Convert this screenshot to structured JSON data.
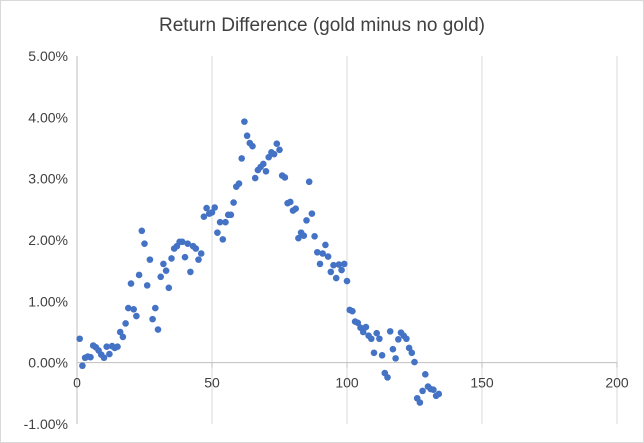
{
  "chart_data": {
    "type": "scatter",
    "title": "Return Difference (gold minus no gold)",
    "xlabel": "",
    "ylabel": "",
    "xlim": [
      0,
      200
    ],
    "ylim": [
      -0.01,
      0.05
    ],
    "x_ticks": [
      0,
      50,
      100,
      150,
      200
    ],
    "x_tick_labels": [
      "0",
      "50",
      "100",
      "150",
      "200"
    ],
    "y_ticks": [
      -0.01,
      0,
      0.01,
      0.02,
      0.03,
      0.04,
      0.05
    ],
    "y_tick_labels": [
      "-1.00%",
      "0.00%",
      "1.00%",
      "2.00%",
      "3.00%",
      "4.00%",
      "5.00%"
    ],
    "grid": "vertical major gridlines",
    "legend": "none",
    "marker_color": "#4472c4",
    "series": [
      {
        "points": [
          [
            1,
            0.0039
          ],
          [
            2,
            -0.0005
          ],
          [
            3,
            0.0008
          ],
          [
            4,
            0.001
          ],
          [
            5,
            0.0009
          ],
          [
            6,
            0.0028
          ],
          [
            7,
            0.0025
          ],
          [
            8,
            0.002
          ],
          [
            9,
            0.0013
          ],
          [
            10,
            0.0008
          ],
          [
            11,
            0.0026
          ],
          [
            12,
            0.0014
          ],
          [
            13,
            0.0027
          ],
          [
            14,
            0.0024
          ],
          [
            15,
            0.0026
          ],
          [
            16,
            0.005
          ],
          [
            17,
            0.0042
          ],
          [
            18,
            0.0064
          ],
          [
            19,
            0.0089
          ],
          [
            20,
            0.0129
          ],
          [
            21,
            0.0087
          ],
          [
            22,
            0.0076
          ],
          [
            23,
            0.0143
          ],
          [
            24,
            0.0215
          ],
          [
            25,
            0.0194
          ],
          [
            26,
            0.0126
          ],
          [
            27,
            0.0168
          ],
          [
            28,
            0.0071
          ],
          [
            29,
            0.0089
          ],
          [
            30,
            0.0054
          ],
          [
            31,
            0.014
          ],
          [
            32,
            0.0161
          ],
          [
            33,
            0.015
          ],
          [
            34,
            0.0122
          ],
          [
            35,
            0.017
          ],
          [
            36,
            0.0186
          ],
          [
            37,
            0.019
          ],
          [
            38,
            0.0197
          ],
          [
            39,
            0.0197
          ],
          [
            40,
            0.0172
          ],
          [
            41,
            0.0194
          ],
          [
            42,
            0.0148
          ],
          [
            43,
            0.019
          ],
          [
            44,
            0.0186
          ],
          [
            45,
            0.0168
          ],
          [
            46,
            0.0178
          ],
          [
            47,
            0.0238
          ],
          [
            48,
            0.0252
          ],
          [
            49,
            0.0243
          ],
          [
            50,
            0.0245
          ],
          [
            51,
            0.0253
          ],
          [
            52,
            0.0212
          ],
          [
            53,
            0.0229
          ],
          [
            54,
            0.0201
          ],
          [
            55,
            0.0229
          ],
          [
            56,
            0.0241
          ],
          [
            57,
            0.0241
          ],
          [
            58,
            0.0261
          ],
          [
            59,
            0.0287
          ],
          [
            60,
            0.0292
          ],
          [
            61,
            0.0333
          ],
          [
            62,
            0.0393
          ],
          [
            63,
            0.037
          ],
          [
            64,
            0.0358
          ],
          [
            65,
            0.0353
          ],
          [
            66,
            0.0301
          ],
          [
            67,
            0.0314
          ],
          [
            68,
            0.0319
          ],
          [
            69,
            0.0324
          ],
          [
            70,
            0.0312
          ],
          [
            71,
            0.0335
          ],
          [
            72,
            0.0343
          ],
          [
            73,
            0.034
          ],
          [
            74,
            0.0357
          ],
          [
            75,
            0.0347
          ],
          [
            76,
            0.0305
          ],
          [
            77,
            0.0302
          ],
          [
            78,
            0.026
          ],
          [
            79,
            0.0262
          ],
          [
            80,
            0.0248
          ],
          [
            81,
            0.0251
          ],
          [
            82,
            0.0203
          ],
          [
            83,
            0.0212
          ],
          [
            84,
            0.0207
          ],
          [
            85,
            0.0232
          ],
          [
            86,
            0.0295
          ],
          [
            87,
            0.0243
          ],
          [
            88,
            0.0206
          ],
          [
            89,
            0.018
          ],
          [
            90,
            0.0161
          ],
          [
            91,
            0.0178
          ],
          [
            92,
            0.0192
          ],
          [
            93,
            0.0173
          ],
          [
            94,
            0.0148
          ],
          [
            95,
            0.0159
          ],
          [
            96,
            0.0138
          ],
          [
            97,
            0.016
          ],
          [
            98,
            0.0151
          ],
          [
            99,
            0.0161
          ],
          [
            100,
            0.0133
          ],
          [
            101,
            0.0086
          ],
          [
            102,
            0.0084
          ],
          [
            103,
            0.0067
          ],
          [
            104,
            0.0065
          ],
          [
            105,
            0.0057
          ],
          [
            106,
            0.005
          ],
          [
            107,
            0.0058
          ],
          [
            108,
            0.0044
          ],
          [
            109,
            0.0039
          ],
          [
            110,
            0.0016
          ],
          [
            111,
            0.0048
          ],
          [
            112,
            0.0039
          ],
          [
            113,
            0.0012
          ],
          [
            114,
            -0.0017
          ],
          [
            115,
            -0.0024
          ],
          [
            116,
            0.0051
          ],
          [
            117,
            0.0022
          ],
          [
            118,
            0.0007
          ],
          [
            119,
            0.0038
          ],
          [
            120,
            0.0049
          ],
          [
            121,
            0.0044
          ],
          [
            122,
            0.0039
          ],
          [
            123,
            0.0024
          ],
          [
            124,
            0.0016
          ],
          [
            125,
            0.0001
          ],
          [
            126,
            -0.0058
          ],
          [
            127,
            -0.0065
          ],
          [
            128,
            -0.0046
          ],
          [
            129,
            -0.0019
          ],
          [
            130,
            -0.0039
          ],
          [
            131,
            -0.0043
          ],
          [
            132,
            -0.0044
          ],
          [
            133,
            -0.0054
          ],
          [
            134,
            -0.0051
          ]
        ]
      }
    ]
  }
}
